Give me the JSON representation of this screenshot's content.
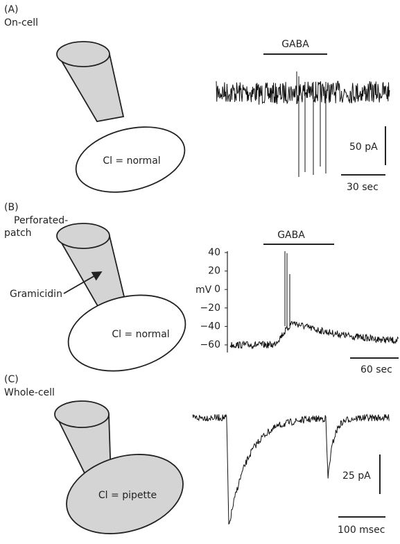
{
  "panel_a": {
    "label": "(A)",
    "mode": "On-cell",
    "cell_text": "Cl = normal",
    "drug": "GABA",
    "scale_y": "50 pA",
    "scale_x": "30 sec"
  },
  "panel_b": {
    "label": "(B)",
    "mode_line1": "Perforated-",
    "mode_line2": "patch",
    "pointer": "Gramicidin",
    "cell_text": "Cl = normal",
    "drug": "GABA",
    "axis_unit": "mV",
    "axis_ticks": [
      "40",
      "20",
      "0",
      "−20",
      "−40",
      "−60"
    ],
    "scale_x": "60 sec"
  },
  "panel_c": {
    "label": "(C)",
    "mode": "Whole-cell",
    "cell_text": "Cl = pipette",
    "scale_y": "25 pA",
    "scale_x": "100 msec"
  }
}
